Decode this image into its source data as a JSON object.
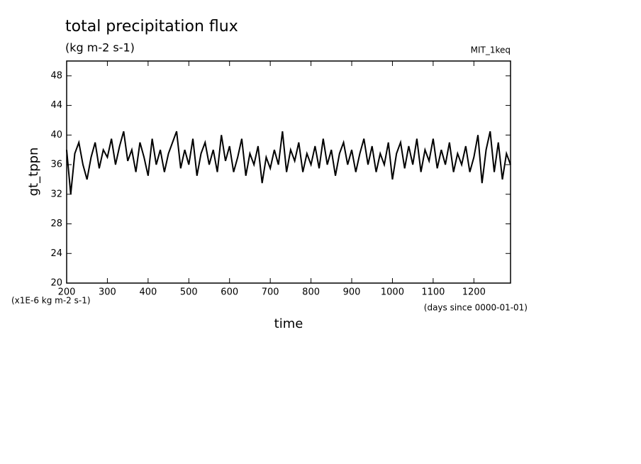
{
  "chart_data": {
    "type": "line",
    "title": "total precipitation flux",
    "subtitle": "(kg m-2 s-1)",
    "annotation": "MIT_1keq",
    "ylabel": "gt_tppn",
    "xlabel": "time",
    "yunit": "(x1E-6 kg m-2 s-1)",
    "xunit": "(days since 0000-01-01)",
    "xlim": [
      200,
      1290
    ],
    "ylim": [
      20,
      50
    ],
    "xticks": [
      200,
      300,
      400,
      500,
      600,
      700,
      800,
      900,
      1000,
      1100,
      1200
    ],
    "yticks": [
      20,
      24,
      28,
      32,
      36,
      40,
      44,
      48
    ],
    "x": [
      200,
      210,
      220,
      230,
      240,
      250,
      260,
      270,
      280,
      290,
      300,
      310,
      320,
      330,
      340,
      350,
      360,
      370,
      380,
      390,
      400,
      410,
      420,
      430,
      440,
      450,
      460,
      470,
      480,
      490,
      500,
      510,
      520,
      530,
      540,
      550,
      560,
      570,
      580,
      590,
      600,
      610,
      620,
      630,
      640,
      650,
      660,
      670,
      680,
      690,
      700,
      710,
      720,
      730,
      740,
      750,
      760,
      770,
      780,
      790,
      800,
      810,
      820,
      830,
      840,
      850,
      860,
      870,
      880,
      890,
      900,
      910,
      920,
      930,
      940,
      950,
      960,
      970,
      980,
      990,
      1000,
      1010,
      1020,
      1030,
      1040,
      1050,
      1060,
      1070,
      1080,
      1090,
      1100,
      1110,
      1120,
      1130,
      1140,
      1150,
      1160,
      1170,
      1180,
      1190,
      1200,
      1210,
      1220,
      1230,
      1240,
      1250,
      1260,
      1270,
      1280,
      1290
    ],
    "series": [
      {
        "color": "#000000",
        "values": [
          38,
          32,
          37.5,
          39,
          36,
          34,
          37,
          39,
          35.5,
          38,
          37,
          39.5,
          36,
          38.5,
          40.5,
          36.5,
          38,
          35,
          39,
          37,
          34.5,
          39.5,
          36,
          38,
          35,
          37.5,
          39,
          40.5,
          35.5,
          38,
          36,
          39.5,
          34.5,
          37.5,
          39,
          36,
          38,
          35,
          40,
          36.5,
          38.5,
          35,
          37,
          39.5,
          34.5,
          37.5,
          36,
          38.5,
          33.5,
          37,
          35.5,
          38,
          36,
          40.5,
          35,
          38,
          36.5,
          39,
          35,
          37.5,
          36,
          38.5,
          35.5,
          39.5,
          36,
          38,
          34.5,
          37.5,
          39,
          36,
          38,
          35,
          37.5,
          39.5,
          36,
          38.5,
          35,
          37.5,
          36,
          39,
          34,
          37.5,
          39,
          35.5,
          38.5,
          36,
          39.5,
          35,
          38,
          36.5,
          39.5,
          35.5,
          38,
          36,
          39,
          35,
          37.5,
          36,
          38.5,
          35,
          37,
          40,
          33.5,
          38,
          40.5,
          35,
          39,
          34,
          37.5,
          36
        ]
      }
    ]
  }
}
